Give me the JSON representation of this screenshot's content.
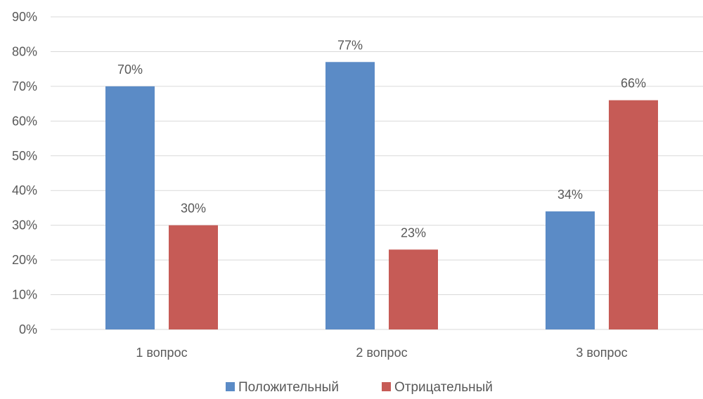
{
  "chart_data": {
    "type": "bar",
    "title": "",
    "xlabel": "",
    "ylabel": "",
    "categories": [
      "1 вопрос",
      "2 вопрос",
      "3 вопрос"
    ],
    "series": [
      {
        "name": "Положительный",
        "color": "#5b8bc6",
        "values": [
          70,
          77,
          34
        ],
        "labels": [
          "70%",
          "77%",
          "34%"
        ]
      },
      {
        "name": "Отрицательный",
        "color": "#c65b56",
        "values": [
          30,
          23,
          66
        ],
        "labels": [
          "30%",
          "23%",
          "66%"
        ]
      }
    ],
    "ylim": [
      0,
      90
    ],
    "y_ticks": [
      0,
      10,
      20,
      30,
      40,
      50,
      60,
      70,
      80,
      90
    ],
    "y_tick_labels": [
      "0%",
      "10%",
      "20%",
      "30%",
      "40%",
      "50%",
      "60%",
      "70%",
      "80%",
      "90%"
    ],
    "grid": true,
    "legend_position": "bottom"
  }
}
